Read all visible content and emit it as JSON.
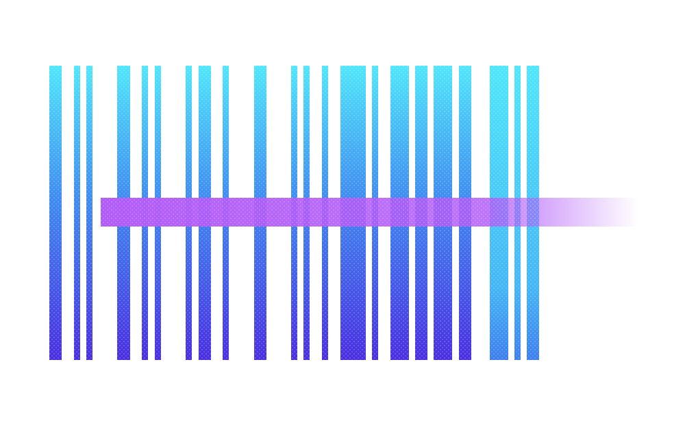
{
  "colors": {
    "background": "#ffffff",
    "bar_top": "#4fe6fb",
    "bar_bottom": "#4a2fe0",
    "scan_band": "#b25cf8"
  },
  "icons": {
    "artwork": "barcode-scan-graphic"
  }
}
